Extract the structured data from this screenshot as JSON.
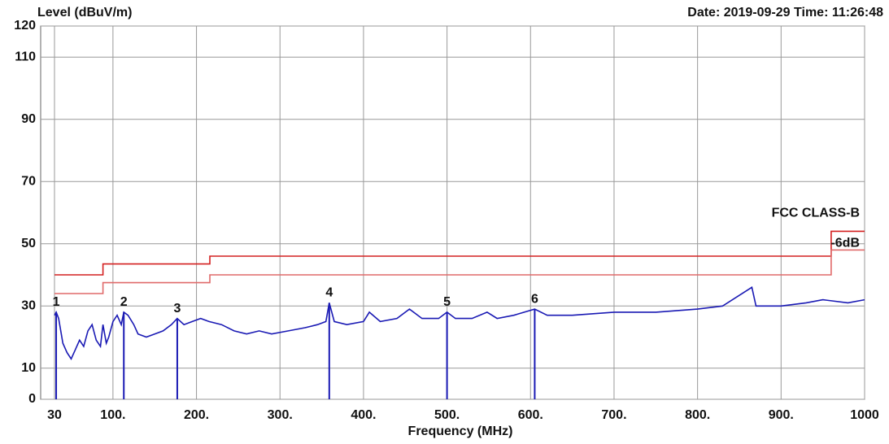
{
  "chart_data": {
    "type": "line",
    "y_label": "Level (dBuV/m)",
    "x_label": "Frequency (MHz)",
    "timestamp": "Date: 2019-09-29  Time: 11:26:48",
    "xlim": [
      30,
      1000
    ],
    "ylim": [
      0,
      120
    ],
    "xticks": [
      30,
      {
        "value": 100,
        "label": "100."
      },
      {
        "value": 200,
        "label": "200."
      },
      {
        "value": 300,
        "label": "300."
      },
      {
        "value": 400,
        "label": "400."
      },
      {
        "value": 500,
        "label": "500."
      },
      {
        "value": 600,
        "label": "600."
      },
      {
        "value": 700,
        "label": "700."
      },
      {
        "value": 800,
        "label": "800."
      },
      {
        "value": 900,
        "label": "900."
      },
      1000
    ],
    "yticks": [
      0,
      10,
      30,
      50,
      70,
      90,
      110,
      120
    ],
    "grid": true,
    "series": [
      {
        "name": "FCC CLASS-B",
        "color": "#d42020",
        "x": [
          30,
          88,
          88,
          216,
          216,
          960,
          960,
          1000
        ],
        "values": [
          40,
          40,
          43.5,
          43.5,
          46,
          46,
          54,
          54
        ]
      },
      {
        "name": "-6dB",
        "color": "#e06a6a",
        "x": [
          30,
          88,
          88,
          216,
          216,
          960,
          960,
          1000
        ],
        "values": [
          34,
          34,
          37.5,
          37.5,
          40,
          40,
          48,
          48
        ]
      },
      {
        "color": "#1a1ab4",
        "x": [
          30,
          32,
          35,
          40,
          45,
          50,
          55,
          60,
          65,
          70,
          75,
          80,
          85,
          88,
          92,
          95,
          100,
          105,
          110,
          113,
          118,
          125,
          130,
          140,
          150,
          160,
          170,
          177,
          185,
          195,
          205,
          215,
          230,
          245,
          260,
          275,
          290,
          310,
          330,
          345,
          355,
          359,
          365,
          380,
          400,
          407,
          420,
          440,
          455,
          470,
          490,
          500,
          510,
          530,
          548,
          560,
          580,
          605,
          620,
          650,
          700,
          750,
          800,
          830,
          865,
          870,
          900,
          930,
          950,
          980,
          1000
        ],
        "values": [
          27,
          28,
          26,
          18,
          15,
          13,
          16,
          19,
          17,
          22,
          24,
          19,
          17,
          24,
          18,
          20,
          25,
          27,
          24,
          28,
          27,
          24,
          21,
          20,
          21,
          22,
          24,
          26,
          24,
          25,
          26,
          25,
          24,
          22,
          21,
          22,
          21,
          22,
          23,
          24,
          25,
          31,
          25,
          24,
          25,
          28,
          25,
          26,
          29,
          26,
          26,
          28,
          26,
          26,
          28,
          26,
          27,
          29,
          27,
          27,
          28,
          28,
          29,
          30,
          36,
          30,
          30,
          31,
          32,
          31,
          32
        ]
      }
    ],
    "markers": {
      "color": "#1a1ab4",
      "labels": [
        "1",
        "2",
        "3",
        "4",
        "5",
        "6"
      ],
      "x": [
        32,
        113,
        177,
        359,
        500,
        605
      ],
      "values": [
        28,
        28,
        26,
        31,
        28,
        29
      ]
    }
  }
}
